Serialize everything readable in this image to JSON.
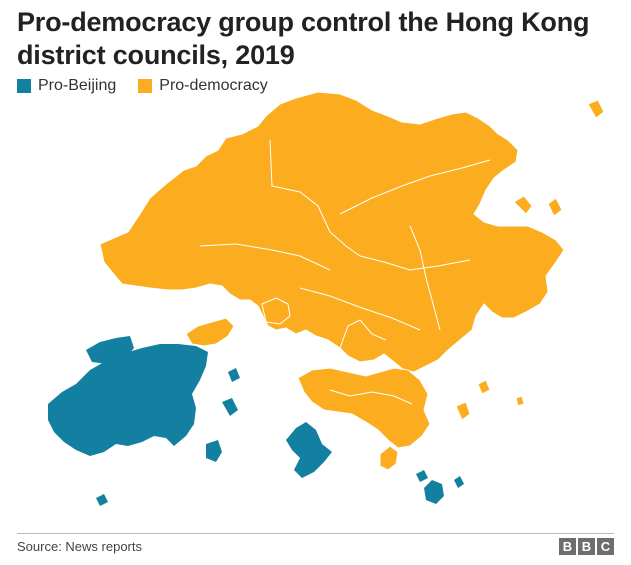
{
  "title": "Pro-democracy group control the Hong Kong district councils, 2019",
  "legend": [
    {
      "label": "Pro-Beijing",
      "color": "#1380a1"
    },
    {
      "label": "Pro-democracy",
      "color": "#fbad1f"
    }
  ],
  "source": "Source: News reports",
  "logo": [
    "B",
    "B",
    "C"
  ],
  "colors": {
    "pro_beijing": "#1380a1",
    "pro_democracy": "#fbad1f",
    "border": "#ffffff"
  }
}
